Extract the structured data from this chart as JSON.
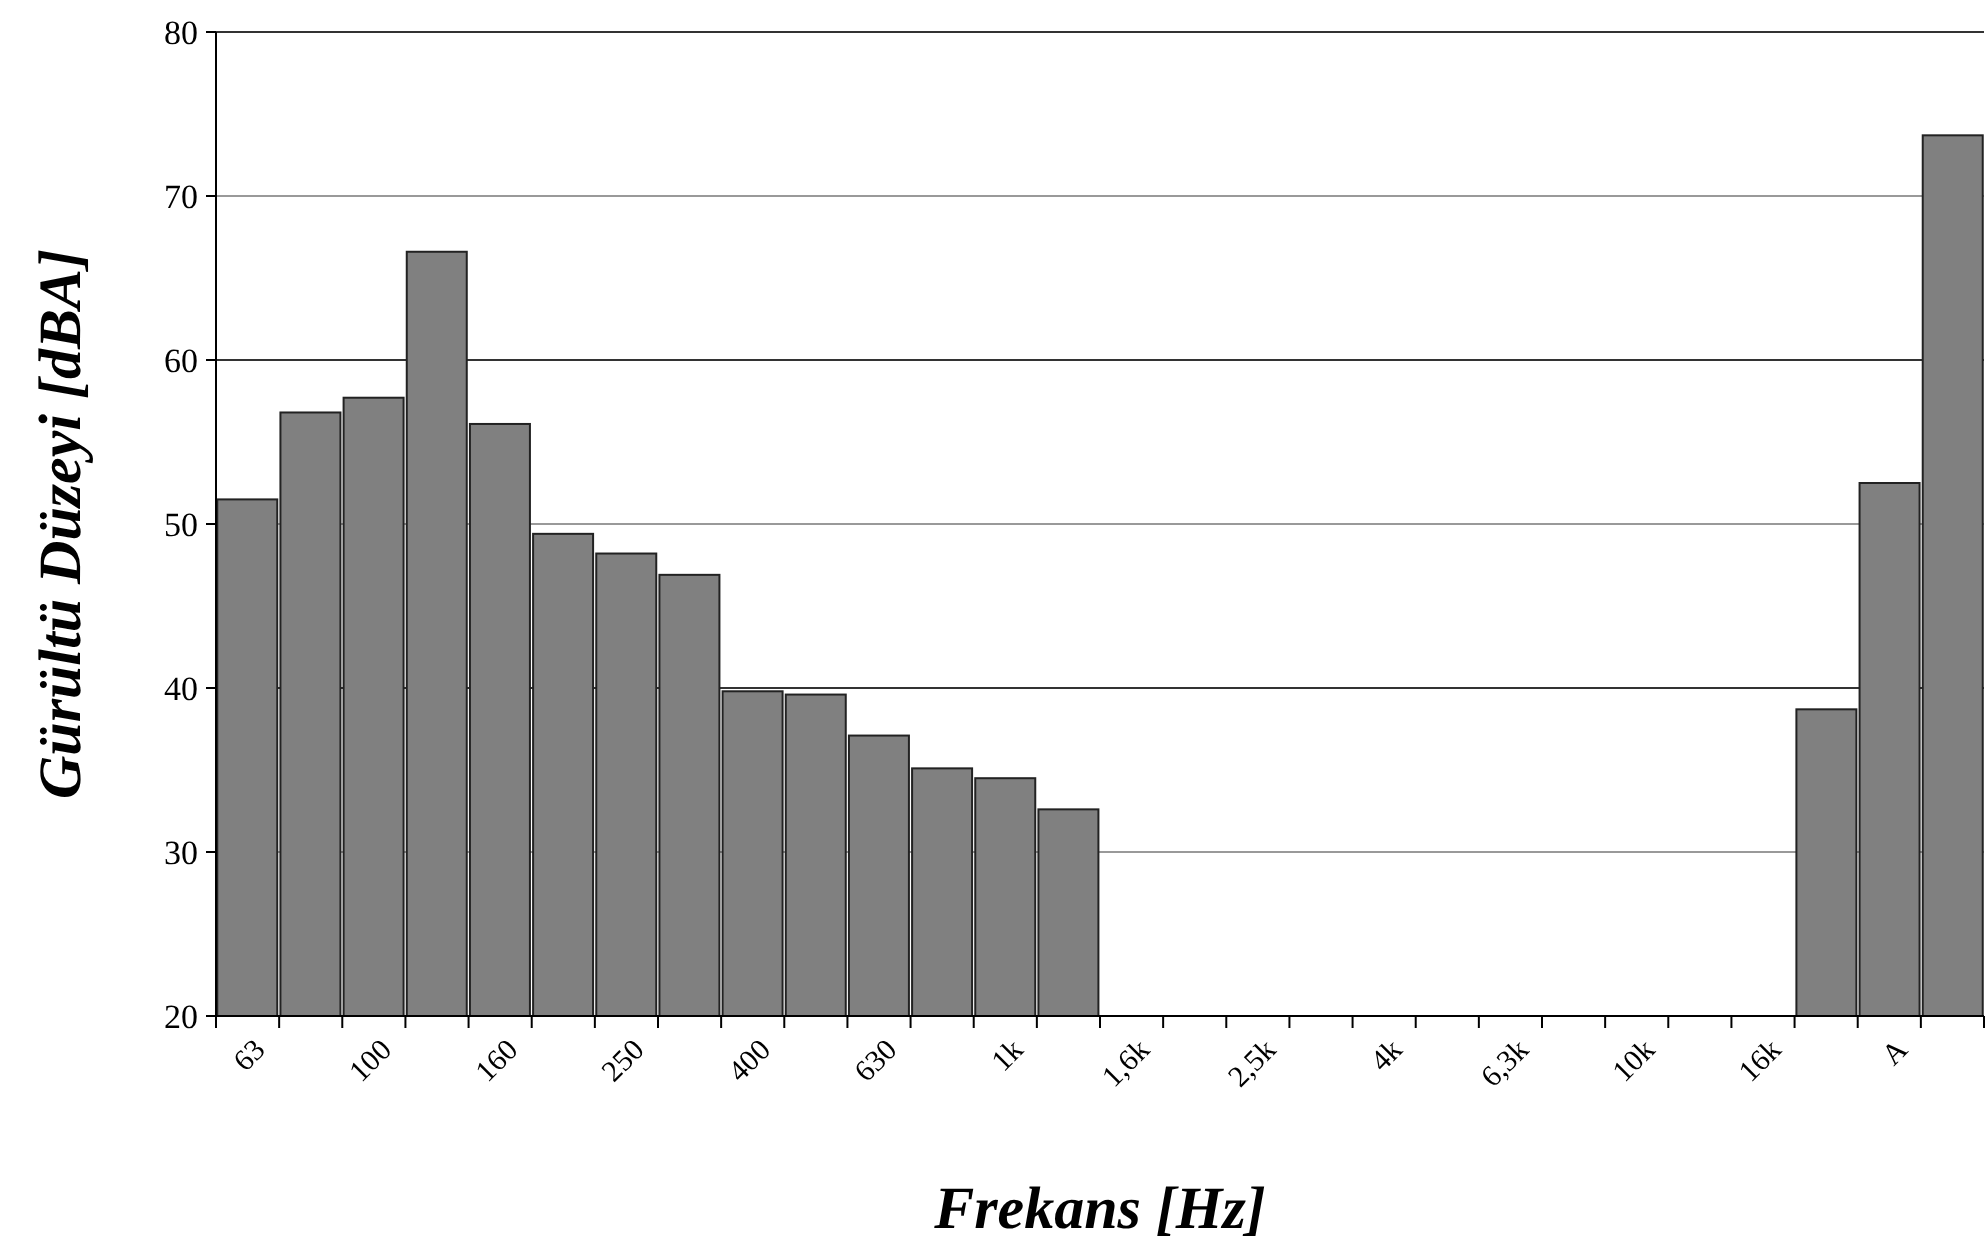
{
  "chart_data": {
    "type": "bar",
    "xlabel": "Frekans [Hz]",
    "ylabel": "Gürültü Düzeyi [dBA]",
    "categories": [
      "63",
      null,
      "100",
      null,
      "160",
      null,
      "250",
      null,
      "400",
      null,
      "630",
      null,
      "1k",
      null,
      "1,6k",
      null,
      "2,5k",
      null,
      "4k",
      null,
      "6,3k",
      null,
      "10k",
      null,
      "16k",
      null,
      "A",
      null
    ],
    "values": [
      51.5,
      56.8,
      57.7,
      66.6,
      56.1,
      49.4,
      48.2,
      46.9,
      39.8,
      39.6,
      37.1,
      35.1,
      34.5,
      32.6,
      null,
      null,
      null,
      null,
      null,
      null,
      null,
      null,
      null,
      null,
      null,
      38.7,
      52.5,
      73.7
    ],
    "color": "#808080",
    "ylim": [
      20,
      80
    ],
    "yticks": [
      20,
      30,
      40,
      50,
      60,
      70,
      80
    ],
    "grid": "y"
  }
}
